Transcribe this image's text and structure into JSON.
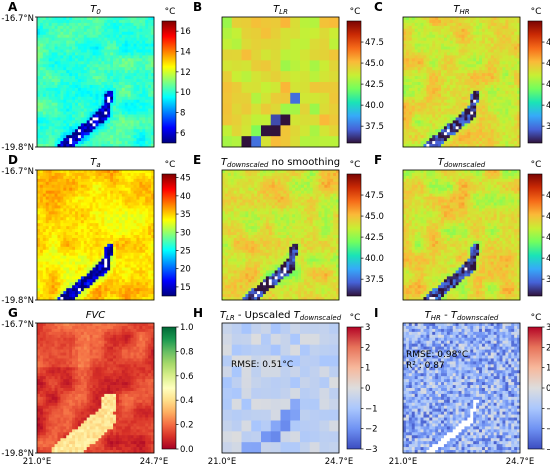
{
  "figure": {
    "lat_labels": {
      "top": "-16.7°N",
      "bottom": "-19.8°N"
    },
    "lon_labels": {
      "left": "21.0°E",
      "right": "24.7°E"
    }
  },
  "chart_data": [
    {
      "type": "heatmap",
      "panel": "A",
      "title": "T0",
      "title_main": "T",
      "title_sub": "0",
      "unit": "°C",
      "colormap": "jet",
      "clim": [
        5,
        17
      ],
      "ticks": [
        6,
        8,
        10,
        12,
        14,
        16
      ]
    },
    {
      "type": "heatmap",
      "panel": "B",
      "title": "TLR",
      "title_main": "T",
      "title_sub": "LR",
      "unit": "°C",
      "colormap": "turbo",
      "clim": [
        35.5,
        50
      ],
      "ticks": [
        37.5,
        40.0,
        42.5,
        45.0,
        47.5
      ],
      "grid_cells": [
        12,
        12
      ]
    },
    {
      "type": "heatmap",
      "panel": "C",
      "title": "THR",
      "title_main": "T",
      "title_sub": "HR",
      "unit": "°C",
      "colormap": "turbo",
      "clim": [
        35.5,
        50
      ],
      "ticks": [
        37.5,
        40.0,
        42.5,
        45.0,
        47.5
      ]
    },
    {
      "type": "heatmap",
      "panel": "D",
      "title": "Ta",
      "title_main": "T",
      "title_sub": "a",
      "unit": "°C",
      "colormap": "jet",
      "clim": [
        12.5,
        46
      ],
      "ticks": [
        15,
        20,
        25,
        30,
        35,
        40,
        45
      ]
    },
    {
      "type": "heatmap",
      "panel": "E",
      "title": "Tdownscaled no smoothing",
      "title_main": "T",
      "title_sub": "downscaled",
      "title_suffix": " no smoothing",
      "unit": "°C",
      "colormap": "turbo",
      "clim": [
        35.5,
        50
      ],
      "ticks": [
        37.5,
        40.0,
        42.5,
        45.0,
        47.5
      ]
    },
    {
      "type": "heatmap",
      "panel": "F",
      "title": "Tdownscaled",
      "title_main": "T",
      "title_sub": "downscaled",
      "unit": "°C",
      "colormap": "turbo",
      "clim": [
        35.5,
        50
      ],
      "ticks": [
        37.5,
        40.0,
        42.5,
        45.0,
        47.5
      ]
    },
    {
      "type": "heatmap",
      "panel": "G",
      "title": "FVC",
      "unit": "",
      "colormap": "RdYlGn",
      "clim": [
        0,
        1
      ],
      "ticks": [
        0.0,
        0.2,
        0.4,
        0.6,
        0.8,
        1.0
      ]
    },
    {
      "type": "heatmap",
      "panel": "H",
      "title": "TLR - Upscaled Tdownscaled",
      "title_main": "T",
      "title_sub": "LR",
      "title_mid": " - Upscaled ",
      "title_main2": "T",
      "title_sub2": "downscaled",
      "unit": "°C",
      "colormap": "coolwarm",
      "clim": [
        -3,
        3
      ],
      "ticks": [
        -3,
        -2,
        -1,
        0,
        1,
        2,
        3
      ],
      "annotations": [
        "RMSE: 0.51°C"
      ],
      "grid_cells": [
        12,
        12
      ]
    },
    {
      "type": "heatmap",
      "panel": "I",
      "title": "THR - Tdownscaled",
      "title_main": "T",
      "title_sub": "HR",
      "title_mid": " - ",
      "title_main2": "T",
      "title_sub2": "downscaled",
      "unit": "°C",
      "colormap": "coolwarm",
      "clim": [
        -3,
        3
      ],
      "ticks": [
        -3,
        -2,
        -1,
        0,
        1,
        2,
        3
      ],
      "annotations": [
        "RMSE: 0.98°C",
        "R² : 0.87"
      ]
    }
  ]
}
